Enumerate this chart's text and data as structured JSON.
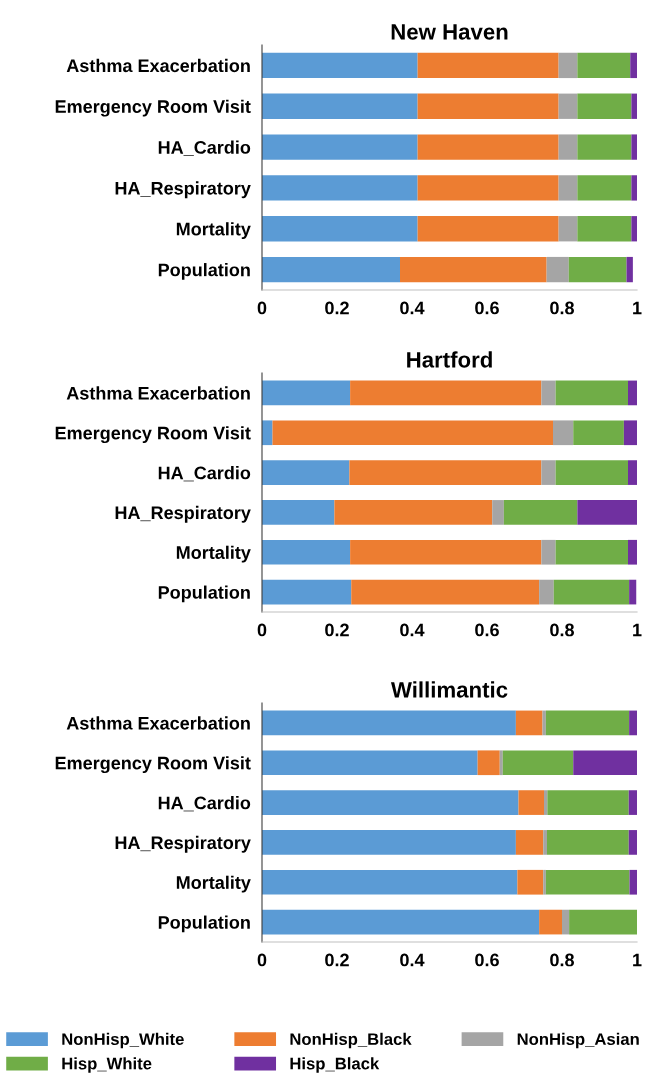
{
  "chart_data": [
    {
      "type": "bar",
      "orientation": "horizontal",
      "stacked": true,
      "title": "New Haven",
      "categories": [
        "Asthma Exacerbation",
        "Emergency Room Visit",
        "HA_Cardio",
        "HA_Respiratory",
        "Mortality",
        "Population"
      ],
      "xlim": [
        0,
        1
      ],
      "xticks": [
        0,
        0.2,
        0.4,
        0.6,
        0.8,
        1
      ],
      "grid": false,
      "legend": false,
      "series": [
        {
          "color": "#5b9bd5",
          "values": [
            0.415,
            0.415,
            0.415,
            0.415,
            0.415,
            0.368
          ]
        },
        {
          "color": "#ed7d31",
          "values": [
            0.376,
            0.376,
            0.376,
            0.376,
            0.376,
            0.391
          ]
        },
        {
          "color": "#a5a5a5",
          "values": [
            0.05,
            0.05,
            0.05,
            0.05,
            0.05,
            0.059
          ]
        },
        {
          "color": "#70ad47",
          "values": [
            0.141,
            0.144,
            0.144,
            0.144,
            0.144,
            0.154
          ]
        },
        {
          "color": "#7030a0",
          "values": [
            0.018,
            0.015,
            0.015,
            0.015,
            0.015,
            0.017
          ]
        }
      ]
    },
    {
      "type": "bar",
      "orientation": "horizontal",
      "stacked": true,
      "title": "Hartford",
      "categories": [
        "Asthma Exacerbation",
        "Emergency Room Visit",
        "HA_Cardio",
        "HA_Respiratory",
        "Mortality",
        "Population"
      ],
      "xlim": [
        0,
        1
      ],
      "xticks": [
        0,
        0.2,
        0.4,
        0.6,
        0.8,
        1
      ],
      "grid": false,
      "legend": false,
      "series": [
        {
          "color": "#5b9bd5",
          "values": [
            0.235,
            0.028,
            0.233,
            0.193,
            0.235,
            0.238
          ]
        },
        {
          "color": "#ed7d31",
          "values": [
            0.51,
            0.748,
            0.512,
            0.421,
            0.51,
            0.501
          ]
        },
        {
          "color": "#a5a5a5",
          "values": [
            0.038,
            0.054,
            0.038,
            0.031,
            0.038,
            0.039
          ]
        },
        {
          "color": "#70ad47",
          "values": [
            0.193,
            0.135,
            0.193,
            0.196,
            0.193,
            0.201
          ]
        },
        {
          "color": "#7030a0",
          "values": [
            0.024,
            0.035,
            0.024,
            0.159,
            0.024,
            0.019
          ]
        }
      ]
    },
    {
      "type": "bar",
      "orientation": "horizontal",
      "stacked": true,
      "title": "Willimantic",
      "categories": [
        "Asthma Exacerbation",
        "Emergency Room Visit",
        "HA_Cardio",
        "HA_Respiratory",
        "Mortality",
        "Population"
      ],
      "xlim": [
        0,
        1
      ],
      "xticks": [
        0,
        0.2,
        0.4,
        0.6,
        0.8,
        1
      ],
      "grid": false,
      "legend": "bottom",
      "series": [
        {
          "name": "NonHisp_White",
          "color": "#5b9bd5",
          "values": [
            0.677,
            0.575,
            0.684,
            0.677,
            0.681,
            0.739
          ]
        },
        {
          "name": "NonHisp_Black",
          "color": "#ed7d31",
          "values": [
            0.071,
            0.059,
            0.068,
            0.073,
            0.069,
            0.061
          ]
        },
        {
          "name": "NonHisp_Asian",
          "color": "#a5a5a5",
          "values": [
            0.009,
            0.008,
            0.009,
            0.01,
            0.007,
            0.019
          ]
        },
        {
          "name": "Hisp_White",
          "color": "#70ad47",
          "values": [
            0.222,
            0.188,
            0.217,
            0.218,
            0.223,
            0.181
          ]
        },
        {
          "name": "Hisp_Black",
          "color": "#7030a0",
          "values": [
            0.021,
            0.17,
            0.022,
            0.022,
            0.02,
            0
          ]
        }
      ]
    }
  ]
}
